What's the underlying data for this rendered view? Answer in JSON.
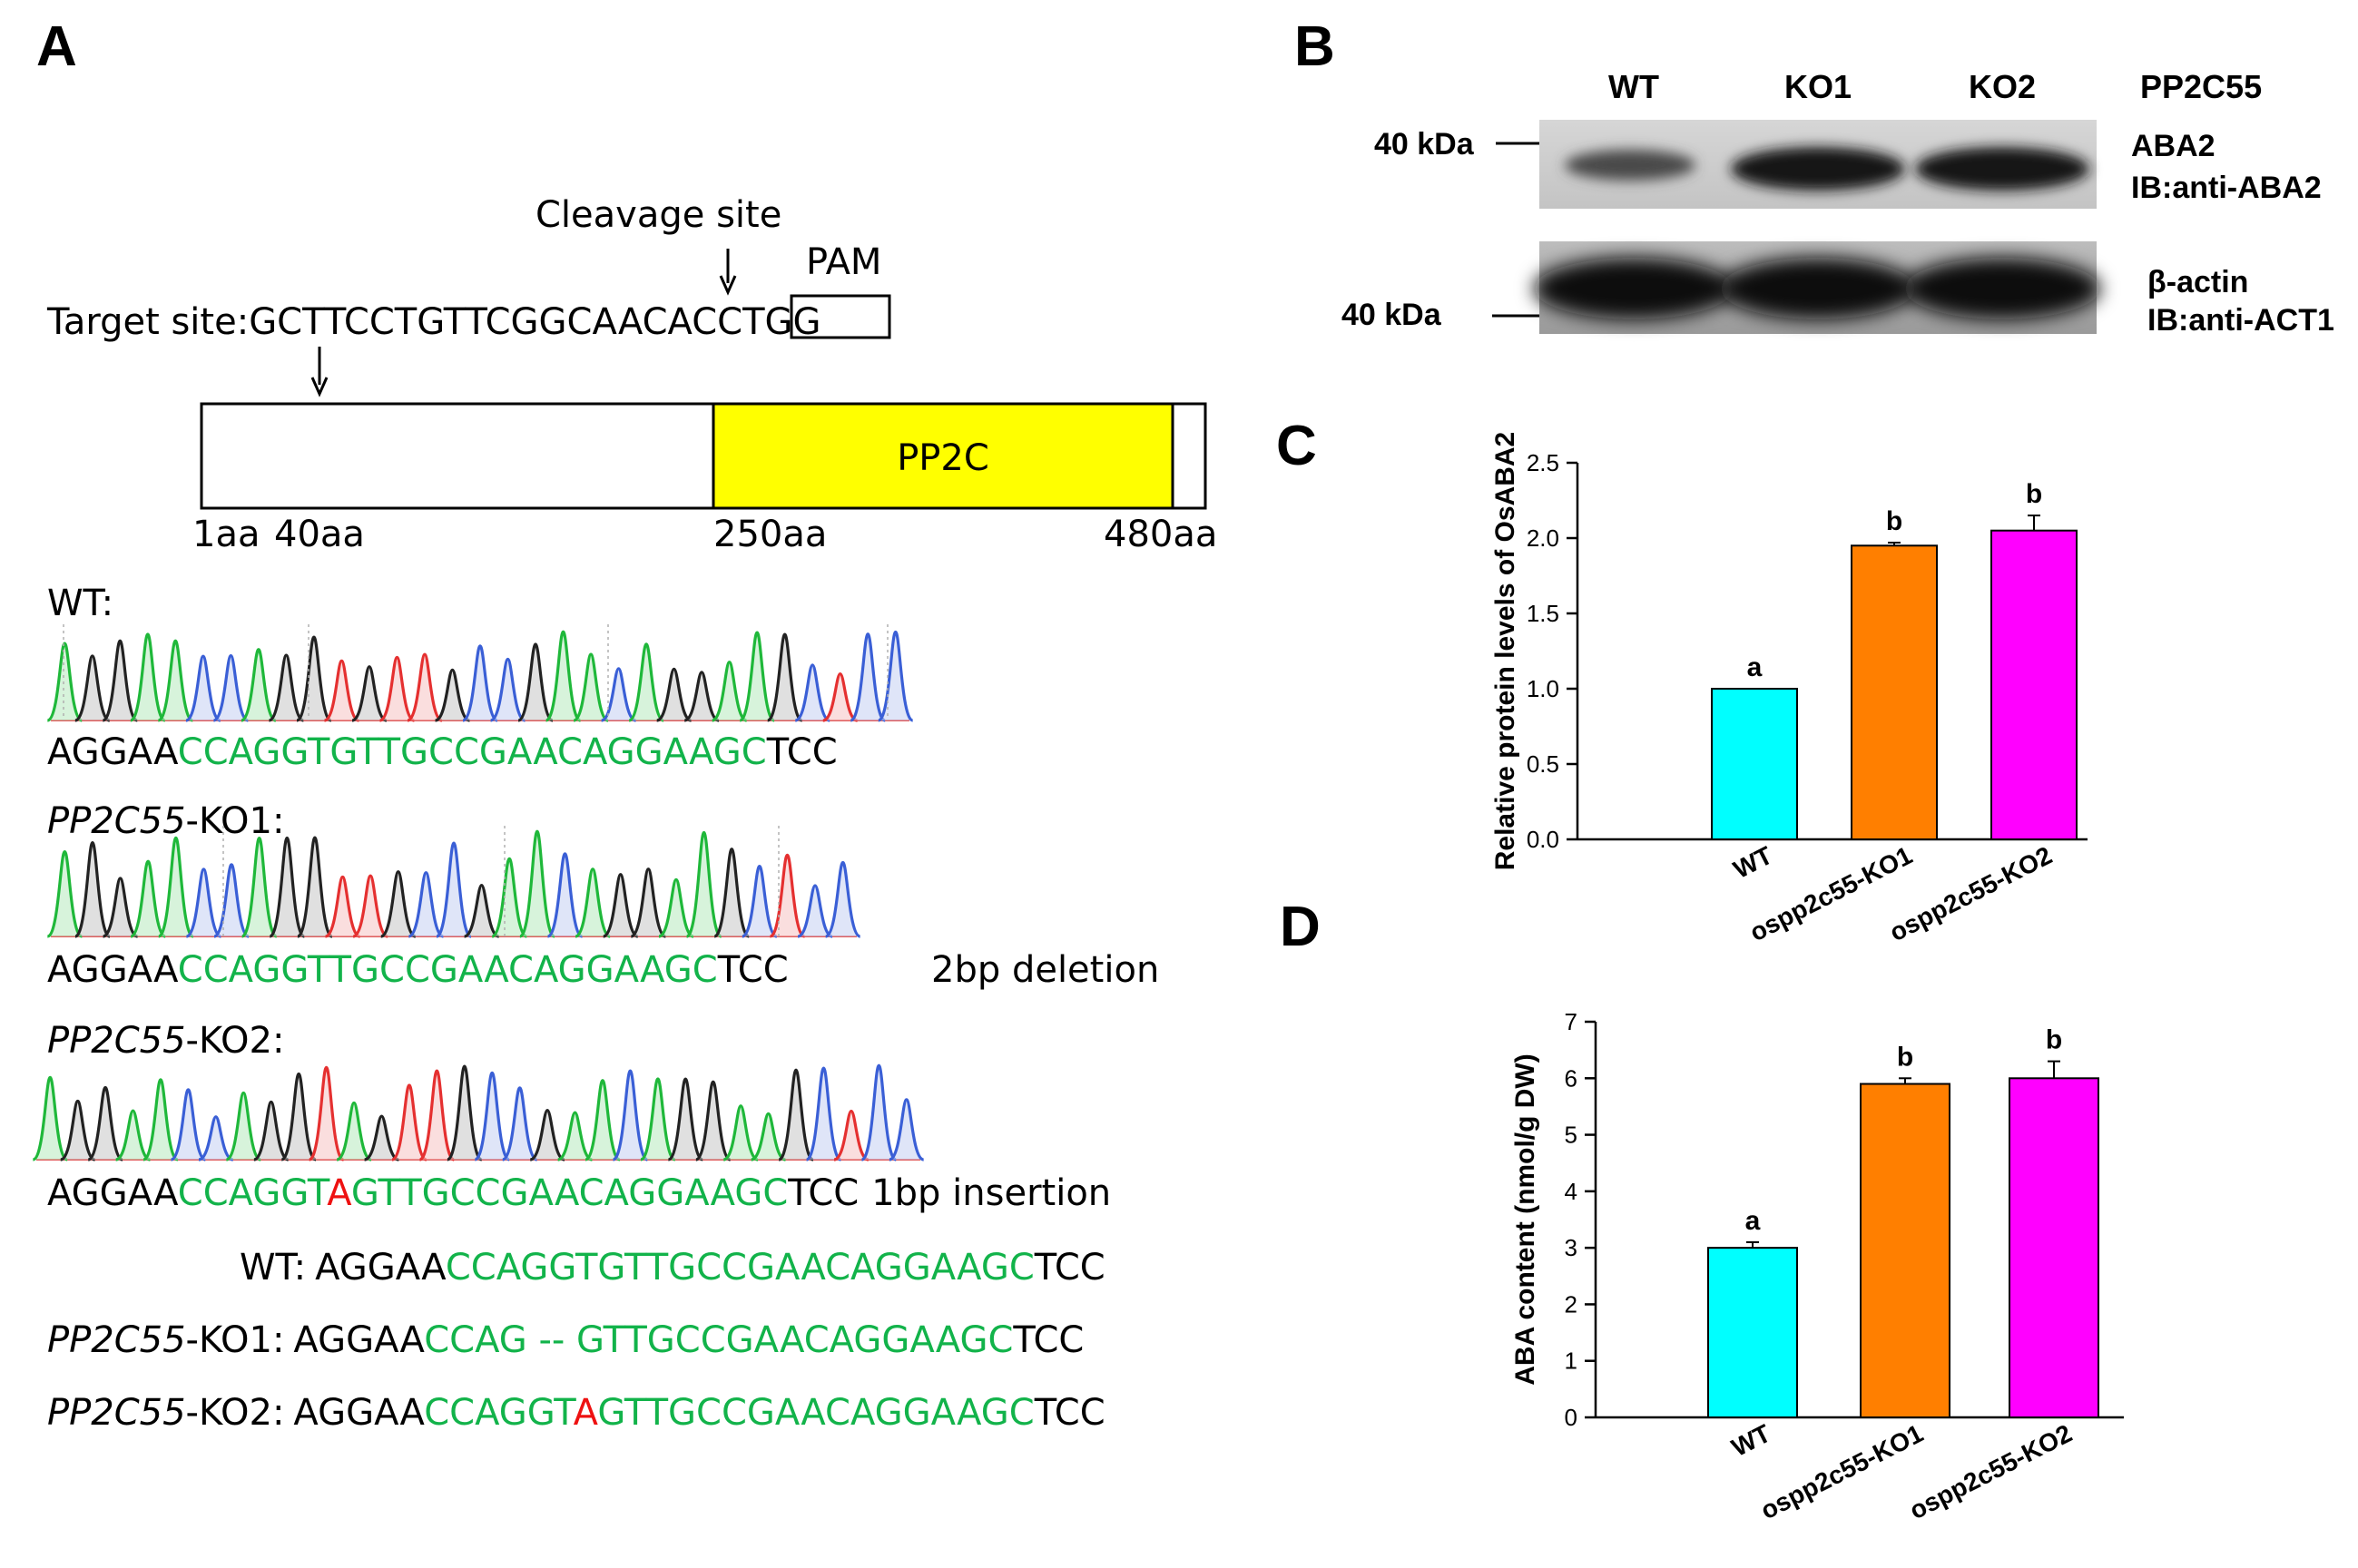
{
  "panel_labels": {
    "a": "A",
    "b": "B",
    "c": "C",
    "d": "D"
  },
  "panel_a": {
    "cleavage_label": "Cleavage site",
    "pam_label": "PAM",
    "target_prefix": "Target site:",
    "target_seq": "GCTTCCTGTTCGGCAACAC",
    "target_mid": "C",
    "target_pam": "TGG",
    "domain_label": "PP2C",
    "pos_1": "1aa",
    "pos_40": "40aa",
    "pos_250": "250aa",
    "pos_480": "480aa",
    "wt_label": "WT:",
    "ko1_label_gene": "PP2C55",
    "ko1_label_rest": "-KO1:",
    "ko2_label_gene": "PP2C55",
    "ko2_label_rest": "-KO2:",
    "wt_seq": {
      "pre": "AGGAA",
      "green": "CCAGGTGTTGCCGAACAGGAAGC",
      "post": "TCC"
    },
    "ko1_seq": {
      "pre": "AGGAA",
      "green": "CCAGGTTGCCGAACAGGAAGC",
      "post": "TCC"
    },
    "ko1_note": "2bp deletion",
    "ko2_seq": {
      "pre": "AGGAA",
      "green1": "CCAGGT",
      "red": "A",
      "green2": "GTTGCCGAACAGGAAGC",
      "post": "TCC"
    },
    "ko2_note": "1bp insertion",
    "alignment": {
      "wt_label": "WT:",
      "wt": {
        "pre": "AGGAA",
        "green": "CCAGGTGTTGCCGAACAGGAAGC",
        "post": "TCC"
      },
      "ko1_gene": "PP2C55",
      "ko1_rest": "-KO1:",
      "ko1": {
        "pre": "AGGAA",
        "green": "CCAG -- GTTGCCGAACAGGAAGC",
        "post": "TCC"
      },
      "ko2_gene": "PP2C55",
      "ko2_rest": "-KO2:",
      "ko2": {
        "pre": "AGGAA",
        "green1": "CCAGGT",
        "red": "A",
        "green2": "GTTGCCGAACAGGAAGC",
        "post": "TCC"
      }
    }
  },
  "panel_b": {
    "lanes": [
      "WT",
      "KO1",
      "KO2"
    ],
    "gene": "PP2C55",
    "blot1_marker": "40 kDa",
    "blot1_label1": "ABA2",
    "blot1_label2": "IB:anti-ABA2",
    "blot2_marker": "40 kDa",
    "blot2_label1": "β-actin",
    "blot2_label2": "IB:anti-ACT1"
  },
  "chart_data": [
    {
      "type": "bar",
      "panel": "C",
      "categories": [
        "WT",
        "ospp2c55-KO1",
        "ospp2c55-KO2"
      ],
      "values": [
        1.0,
        1.95,
        2.05
      ],
      "errors": [
        0.0,
        0.02,
        0.1
      ],
      "letters": [
        "a",
        "b",
        "b"
      ],
      "colors": [
        "#00ffff",
        "#ff7f00",
        "#ff00ff"
      ],
      "ylabel": "Relative protein levels of OsABA2",
      "ylim": [
        0,
        2.5
      ],
      "yticks": [
        "0.0",
        "0.5",
        "1.0",
        "1.5",
        "2.0",
        "2.5"
      ]
    },
    {
      "type": "bar",
      "panel": "D",
      "categories": [
        "WT",
        "ospp2c55-KO1",
        "ospp2c55-KO2"
      ],
      "values": [
        3.0,
        5.9,
        6.0
      ],
      "errors": [
        0.1,
        0.1,
        0.3
      ],
      "letters": [
        "a",
        "b",
        "b"
      ],
      "colors": [
        "#00ffff",
        "#ff7f00",
        "#ff00ff"
      ],
      "ylabel": "ABA content (nmol/g DW)",
      "ylim": [
        0,
        7
      ],
      "yticks": [
        "0",
        "1",
        "2",
        "3",
        "4",
        "5",
        "6",
        "7"
      ]
    }
  ]
}
